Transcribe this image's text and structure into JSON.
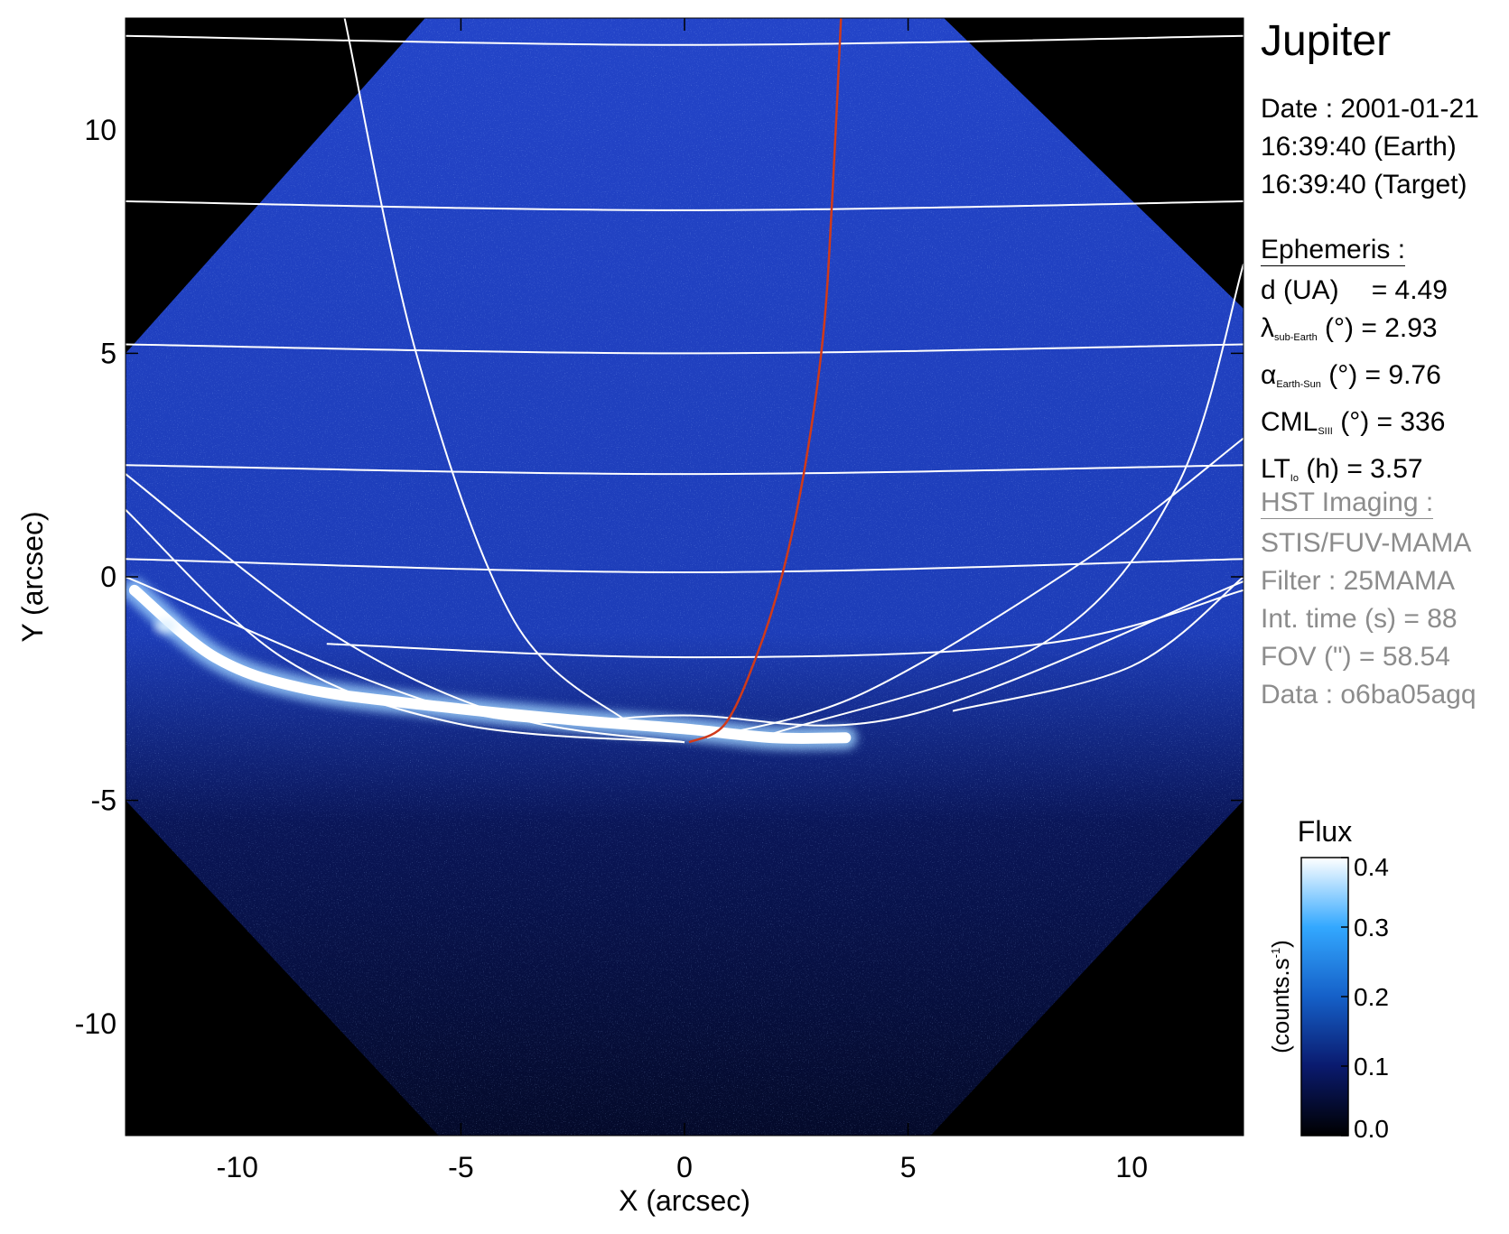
{
  "sidebar": {
    "title": "Jupiter",
    "date_line": "Date : 2001-01-21",
    "time_earth": "16:39:40 (Earth)",
    "time_target": "16:39:40 (Target)",
    "ephemeris": {
      "header": "Ephemeris :",
      "d_label": "d (UA)",
      "d_value": "= 4.49",
      "lambda_sym": "λ",
      "lambda_sub": "sub-Earth",
      "lambda_rest": "(°) = 2.93",
      "alpha_sym": "α",
      "alpha_sub": "Earth-Sun",
      "alpha_rest": "(°) = 9.76",
      "cml_sym": "CML",
      "cml_sub": "SIII",
      "cml_rest": "(°) = 336",
      "lt_sym": "LT",
      "lt_sub": "Io",
      "lt_rest": "(h) = 3.57"
    },
    "hst": {
      "header": "HST Imaging :",
      "instrument": "STIS/FUV-MAMA",
      "filter": "Filter : 25MAMA",
      "int_time": "Int. time (s) = 88",
      "fov": "FOV (\") = 58.54",
      "data_id": "Data : o6ba05agq"
    }
  },
  "chart_data": {
    "type": "heatmap",
    "xlabel": "X (arcsec)",
    "ylabel": "Y (arcsec)",
    "xlim": [
      -12.5,
      12.5
    ],
    "ylim": [
      -12.5,
      12.5
    ],
    "x_ticks": [
      -10,
      -5,
      0,
      5,
      10
    ],
    "y_ticks": [
      -10,
      -5,
      0,
      5,
      10
    ],
    "grid": false,
    "colorbar": {
      "title": "Flux",
      "label": "(counts.s-1)",
      "unit_base": "(counts.s",
      "unit_exp": "-1",
      "unit_close": ")",
      "ticks": [
        0.0,
        0.1,
        0.2,
        0.3,
        0.4
      ],
      "tick_labels": [
        "0.0",
        "0.1",
        "0.2",
        "0.3",
        "0.4"
      ],
      "range": [
        0.0,
        0.4
      ],
      "colors": [
        "#000000",
        "#0a1a6e",
        "#1560c8",
        "#33a8ff",
        "#ffffff"
      ]
    },
    "colors": {
      "background": "#1f3fc0",
      "outside_fov": "#000000",
      "grid_lines": "#ffffff",
      "io_footprint": "#d03a1a",
      "aurora": "#ffffff"
    },
    "fov_polygon": [
      [
        -5.8,
        12.5
      ],
      [
        5.8,
        12.5
      ],
      [
        12.5,
        6
      ],
      [
        12.5,
        -5
      ],
      [
        5.5,
        -12.5
      ],
      [
        -5.5,
        -12.5
      ],
      [
        -12.5,
        -5
      ],
      [
        -12.5,
        5
      ]
    ],
    "latitude_lines": [
      [
        [
          -12.5,
          12.1
        ],
        [
          0,
          11.9
        ],
        [
          12.5,
          12.1
        ]
      ],
      [
        [
          -12.5,
          8.4
        ],
        [
          0,
          8.2
        ],
        [
          12.5,
          8.4
        ]
      ],
      [
        [
          -12.5,
          5.2
        ],
        [
          0,
          5.0
        ],
        [
          12.5,
          5.2
        ]
      ],
      [
        [
          -12.5,
          2.5
        ],
        [
          0,
          2.3
        ],
        [
          12.5,
          2.5
        ]
      ],
      [
        [
          -12.5,
          0.4
        ],
        [
          0,
          0.1
        ],
        [
          12.5,
          0.4
        ]
      ],
      [
        [
          -8,
          -1.5
        ],
        [
          0,
          -1.8
        ],
        [
          8,
          -1.5
        ],
        [
          12.5,
          -0.3
        ]
      ],
      [
        [
          -12.5,
          0
        ],
        [
          -5,
          -3.0
        ],
        [
          0,
          -3.1
        ],
        [
          5,
          -3.1
        ],
        [
          12.5,
          -0.1
        ]
      ]
    ],
    "longitude_lines": [
      [
        [
          -7.6,
          12.5
        ],
        [
          -6,
          5
        ],
        [
          -3.8,
          -1.0
        ],
        [
          -1.2,
          -3.3
        ]
      ],
      [
        [
          -12.5,
          2.3
        ],
        [
          -8,
          -1.2
        ],
        [
          -4,
          -3.1
        ],
        [
          0,
          -3.7
        ]
      ],
      [
        [
          -12.5,
          1.5
        ],
        [
          -9,
          -1.8
        ],
        [
          -5,
          -3.3
        ],
        [
          0,
          -3.7
        ]
      ],
      [
        [
          0.5,
          -3.6
        ],
        [
          4,
          -2.6
        ],
        [
          9,
          0.4
        ],
        [
          12.5,
          3.1
        ]
      ],
      [
        [
          2,
          -3.5
        ],
        [
          8,
          -1.5
        ],
        [
          11,
          2
        ],
        [
          12.5,
          7.0
        ]
      ],
      [
        [
          6,
          -3.0
        ],
        [
          10,
          -2
        ],
        [
          12.5,
          0
        ]
      ]
    ],
    "io_footprint": [
      [
        0.1,
        -3.7
      ],
      [
        0.9,
        -3.3
      ],
      [
        1.6,
        -1.8
      ],
      [
        2.2,
        0.1
      ],
      [
        2.7,
        2.5
      ],
      [
        3.1,
        5.4
      ],
      [
        3.3,
        8.4
      ],
      [
        3.5,
        12.5
      ]
    ],
    "aurora_oval": [
      [
        -12.3,
        -0.3
      ],
      [
        -10.5,
        -1.8
      ],
      [
        -8.5,
        -2.5
      ],
      [
        -5.5,
        -2.9
      ],
      [
        -2.5,
        -3.2
      ],
      [
        0,
        -3.4
      ],
      [
        2,
        -3.6
      ],
      [
        3.6,
        -3.6
      ]
    ],
    "aurora_spot": [
      -11.6,
      -1.1
    ]
  }
}
